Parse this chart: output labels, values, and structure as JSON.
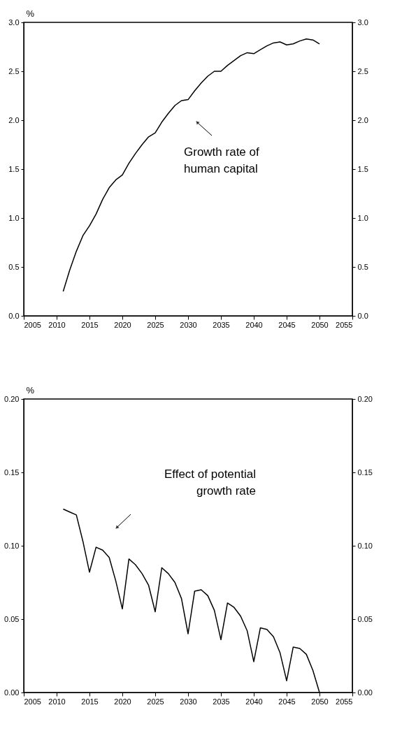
{
  "chart_data": [
    {
      "type": "line",
      "ylabel": "%",
      "x": [
        2011,
        2012,
        2013,
        2014,
        2015,
        2016,
        2017,
        2018,
        2019,
        2020,
        2021,
        2022,
        2023,
        2024,
        2025,
        2026,
        2027,
        2028,
        2029,
        2030,
        2031,
        2032,
        2033,
        2034,
        2035,
        2036,
        2037,
        2038,
        2039,
        2040,
        2041,
        2042,
        2043,
        2044,
        2045,
        2046,
        2047,
        2048,
        2049,
        2050
      ],
      "series": [
        {
          "color": "#000000",
          "values": [
            0.25,
            0.47,
            0.66,
            0.82,
            0.92,
            1.04,
            1.19,
            1.31,
            1.39,
            1.44,
            1.56,
            1.66,
            1.75,
            1.83,
            1.87,
            1.98,
            2.07,
            2.15,
            2.2,
            2.21,
            2.3,
            2.38,
            2.45,
            2.5,
            2.5,
            2.56,
            2.61,
            2.66,
            2.69,
            2.68,
            2.72,
            2.76,
            2.79,
            2.8,
            2.77,
            2.78,
            2.81,
            2.83,
            2.82,
            2.78
          ]
        }
      ],
      "xlim": [
        2005,
        2055
      ],
      "xticks": [
        2005,
        2010,
        2015,
        2020,
        2025,
        2030,
        2035,
        2040,
        2045,
        2050,
        2055
      ],
      "ylim": [
        0,
        3
      ],
      "yticks": [
        {
          "value": 0,
          "label": "0.0"
        },
        {
          "value": 0.5,
          "label": "0.5"
        },
        {
          "value": 1,
          "label": "1.0"
        },
        {
          "value": 1.5,
          "label": "1.5"
        },
        {
          "value": 2,
          "label": "2.0"
        },
        {
          "value": 2.5,
          "label": "2.5"
        },
        {
          "value": 3,
          "label": "3.0"
        }
      ],
      "y2lim": [
        0,
        3
      ],
      "y2ticks": [
        {
          "value": 0,
          "label": "0.0"
        },
        {
          "value": 0.5,
          "label": "0.5"
        },
        {
          "value": 1,
          "label": "1.0"
        },
        {
          "value": 1.5,
          "label": "1.5"
        },
        {
          "value": 2,
          "label": "2.0"
        },
        {
          "value": 2.5,
          "label": "2.5"
        },
        {
          "value": 3,
          "label": "3.0"
        }
      ],
      "annotations": [
        "Growth rate of\nhuman capital"
      ],
      "line_style": "solid"
    },
    {
      "type": "line",
      "ylabel": "%",
      "x": [
        2011,
        2012,
        2013,
        2014,
        2015,
        2016,
        2017,
        2018,
        2019,
        2020,
        2021,
        2022,
        2023,
        2024,
        2025,
        2026,
        2027,
        2028,
        2029,
        2030,
        2031,
        2032,
        2033,
        2034,
        2035,
        2036,
        2037,
        2038,
        2039,
        2040,
        2041,
        2042,
        2043,
        2044,
        2045,
        2046,
        2047,
        2048,
        2049,
        2050
      ],
      "series": [
        {
          "color": "#000000",
          "values": [
            0.125,
            0.123,
            0.121,
            0.103,
            0.082,
            0.099,
            0.097,
            0.092,
            0.076,
            0.057,
            0.091,
            0.087,
            0.081,
            0.073,
            0.055,
            0.085,
            0.081,
            0.075,
            0.064,
            0.04,
            0.069,
            0.07,
            0.066,
            0.056,
            0.036,
            0.061,
            0.058,
            0.052,
            0.042,
            0.021,
            0.044,
            0.043,
            0.038,
            0.027,
            0.008,
            0.031,
            0.03,
            0.026,
            0.015,
            0.0
          ]
        }
      ],
      "xlim": [
        2005,
        2055
      ],
      "xticks": [
        2005,
        2010,
        2015,
        2020,
        2025,
        2030,
        2035,
        2040,
        2045,
        2050,
        2055
      ],
      "ylim": [
        0,
        0.2
      ],
      "yticks": [
        {
          "value": 0,
          "label": "0.00"
        },
        {
          "value": 0.05,
          "label": "0.05"
        },
        {
          "value": 0.1,
          "label": "0.10"
        },
        {
          "value": 0.15,
          "label": "0.15"
        },
        {
          "value": 0.2,
          "label": "0.20"
        }
      ],
      "y2lim": [
        0,
        0.2
      ],
      "y2ticks": [
        {
          "value": 0,
          "label": "0.00"
        },
        {
          "value": 0.05,
          "label": "0.05"
        },
        {
          "value": 0.1,
          "label": "0.10"
        },
        {
          "value": 0.15,
          "label": "0.15"
        },
        {
          "value": 0.2,
          "label": "0.20"
        }
      ],
      "annotations": [
        "Effect of potential\ngrowth rate"
      ],
      "line_style": "solid"
    }
  ]
}
